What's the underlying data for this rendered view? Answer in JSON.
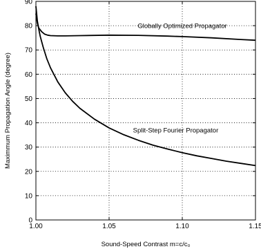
{
  "chart_data": {
    "type": "line",
    "xlabel": "Sound-Speed Contrast m=c/c₀",
    "ylabel": "Maximmum Propagation Angle (degree)",
    "xlim": [
      1.0,
      1.15
    ],
    "ylim": [
      0,
      90
    ],
    "xticks": [
      "1.00",
      "1.05",
      "1.10",
      "1.15"
    ],
    "yticks": [
      "0",
      "10",
      "20",
      "30",
      "40",
      "50",
      "60",
      "70",
      "80",
      "90"
    ],
    "grid": true,
    "series": [
      {
        "name": "Globally Optimized Propagator",
        "x": [
          1.0,
          1.001,
          1.002,
          1.004,
          1.006,
          1.008,
          1.01,
          1.015,
          1.02,
          1.03,
          1.05,
          1.07,
          1.09,
          1.1,
          1.12,
          1.14,
          1.15
        ],
        "y": [
          85,
          81,
          79,
          77.5,
          76.5,
          76.1,
          75.9,
          75.8,
          75.8,
          75.9,
          76.1,
          76.0,
          75.7,
          75.5,
          75.0,
          74.3,
          74.0
        ]
      },
      {
        "name": "Split-Step Fourier Propagator",
        "x": [
          1.0,
          1.001,
          1.002,
          1.003,
          1.005,
          1.0075,
          1.01,
          1.015,
          1.02,
          1.025,
          1.03,
          1.04,
          1.05,
          1.06,
          1.07,
          1.08,
          1.09,
          1.1,
          1.11,
          1.12,
          1.13,
          1.14,
          1.15
        ],
        "y": [
          88,
          81.9,
          78.4,
          75.5,
          71.1,
          66.3,
          62.6,
          56.8,
          52.4,
          48.9,
          46.0,
          41.5,
          37.9,
          35.1,
          32.8,
          30.8,
          29.2,
          27.7,
          26.4,
          25.3,
          24.2,
          23.3,
          22.4
        ]
      }
    ],
    "annotations": [
      {
        "text": "Globally Optimized Propagator",
        "x": 1.1,
        "y": 79
      },
      {
        "text": "Split-Step Fourier Propagator",
        "x": 1.0955,
        "y": 36
      }
    ]
  }
}
